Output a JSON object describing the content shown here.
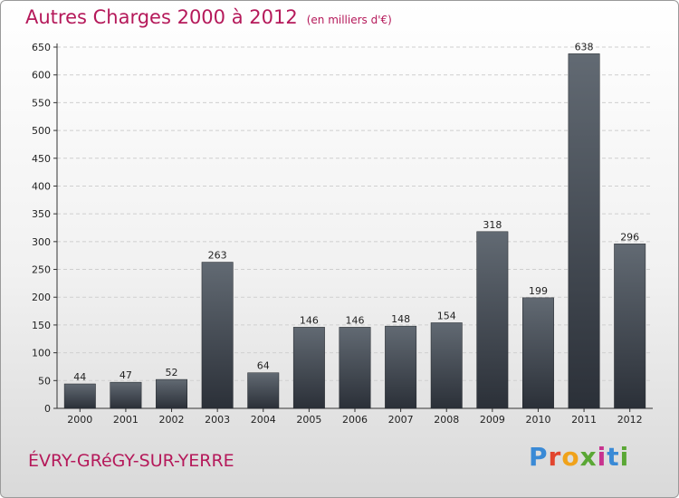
{
  "header": {
    "title": "Autres Charges 2000 à 2012",
    "subtitle": "(en milliers d'€)"
  },
  "footer": {
    "commune": "ÉVRY-GRéGY-SUR-YERRE",
    "logo": "Proxiti"
  },
  "colors": {
    "title": "#b5195a",
    "bar_top": "#626a73",
    "bar_bottom": "#2b3038",
    "grid": "#cfcfcf"
  },
  "chart_data": {
    "type": "bar",
    "title": "Autres Charges 2000 à 2012",
    "subtitle": "(en milliers d'€)",
    "xlabel": "",
    "ylabel": "",
    "categories": [
      "2000",
      "2001",
      "2002",
      "2003",
      "2004",
      "2005",
      "2006",
      "2007",
      "2008",
      "2009",
      "2010",
      "2011",
      "2012"
    ],
    "values": [
      44,
      47,
      52,
      263,
      64,
      146,
      146,
      148,
      154,
      318,
      199,
      638,
      296
    ],
    "ylim": [
      0,
      650
    ],
    "yticks": [
      0,
      50,
      100,
      150,
      200,
      250,
      300,
      350,
      400,
      450,
      500,
      550,
      600,
      650
    ],
    "grid": "horizontal-dashed",
    "legend": "none"
  }
}
